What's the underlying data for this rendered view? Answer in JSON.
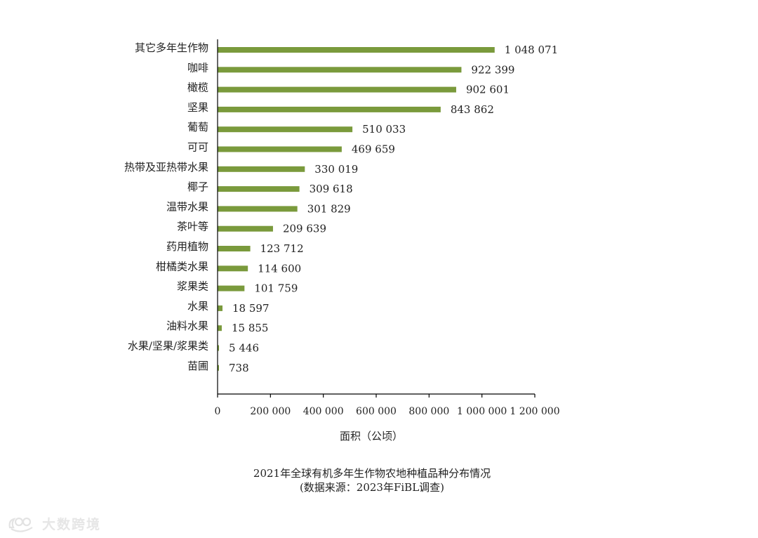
{
  "chart_data": {
    "type": "bar",
    "orientation": "horizontal",
    "categories": [
      "其它多年生作物",
      "咖啡",
      "橄榄",
      "坚果",
      "葡萄",
      "可可",
      "热带及亚热带水果",
      "椰子",
      "温带水果",
      "茶叶等",
      "药用植物",
      "柑橘类水果",
      "浆果类",
      "水果",
      "油料水果",
      "水果/坚果/浆果类",
      "苗圃"
    ],
    "values": [
      1048071,
      922399,
      902601,
      843862,
      510033,
      469659,
      330019,
      309618,
      301829,
      209639,
      123712,
      114600,
      101759,
      18597,
      15855,
      5446,
      738
    ],
    "value_labels": [
      "1 048 071",
      "922 399",
      "902 601",
      "843 862",
      "510 033",
      "469 659",
      "330 019",
      "309 618",
      "301 829",
      "209 639",
      "123 712",
      "114 600",
      "101 759",
      "18 597",
      "15 855",
      "5 446",
      "738"
    ],
    "xlim": [
      0,
      1200000
    ],
    "xticks": [
      0,
      200000,
      400000,
      600000,
      800000,
      1000000,
      1200000
    ],
    "xtick_labels": [
      "0",
      "200 000",
      "400 000",
      "600 000",
      "800 000",
      "1 000 000",
      "1 200 000"
    ],
    "xlabel": "面积（公顷）",
    "ylabel": "",
    "bar_color": "#7a9a3c",
    "grid": false,
    "legend": "none"
  },
  "caption": {
    "title": "2021年全球有机多年生作物农地种植品种分布情况",
    "source": "(数据来源：2023年FiBL调查)"
  },
  "watermark": {
    "text": "大数跨境",
    "icon": "brand-logo-icon"
  }
}
